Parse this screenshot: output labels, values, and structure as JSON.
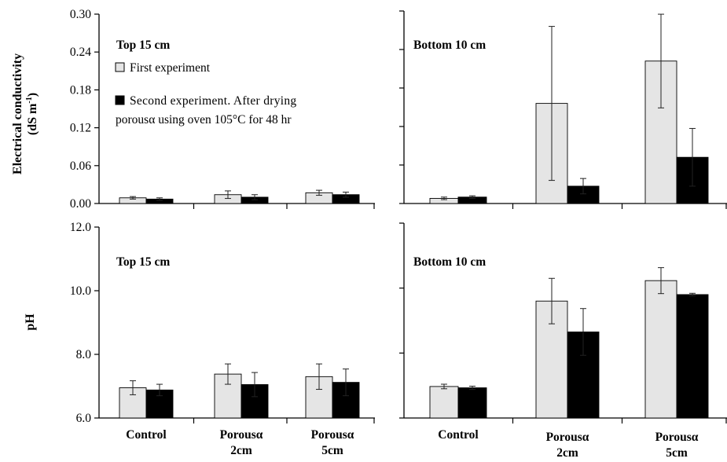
{
  "figure": {
    "left_ylabel_line1": "Electrical conductivity",
    "left_ylabel_line2_pre": "(dS m",
    "left_ylabel_line2_sup": "-1",
    "left_ylabel_line2_post": ")",
    "ph_ylabel": "pH",
    "categories": [
      {
        "line1": "Control",
        "line2": ""
      },
      {
        "line1": "Porousα",
        "line2": "2cm"
      },
      {
        "line1": "Porousα",
        "line2": "5cm"
      }
    ],
    "legend": [
      {
        "symbol": "□",
        "label_line1": "First experiment",
        "label_line2": ""
      },
      {
        "symbol": "■",
        "label_line1": "Second experiment. After drying",
        "label_line2": "porousα using oven 105°C for 48 hr"
      }
    ]
  },
  "colors": {
    "series1": "#e5e5e5",
    "series2": "#000000",
    "axis": "#000000"
  },
  "chart_data": [
    {
      "type": "bar",
      "id": "ec-top",
      "title": "Top 15 cm",
      "categories": [
        "Control",
        "Porousα 2cm",
        "Porousα 5cm"
      ],
      "ylim": [
        0,
        0.3
      ],
      "yticks": [
        "0.00",
        "0.06",
        "0.12",
        "0.18",
        "0.24",
        "0.30"
      ],
      "tick_values": [
        0,
        0.06,
        0.12,
        0.18,
        0.24,
        0.3
      ],
      "series": [
        {
          "name": "First experiment",
          "values": [
            0.009,
            0.014,
            0.017
          ],
          "errors": [
            0.002,
            0.006,
            0.004
          ]
        },
        {
          "name": "Second experiment. After drying porousα using oven 105°C for 48 hr",
          "values": [
            0.007,
            0.01,
            0.014
          ],
          "errors": [
            0.002,
            0.004,
            0.004
          ]
        }
      ]
    },
    {
      "type": "bar",
      "id": "ec-bottom",
      "title": "Bottom 10 cm",
      "categories": [
        "Control",
        "Porousα 2cm",
        "Porousα 5cm"
      ],
      "ylim": [
        0,
        0.3
      ],
      "yticks": [],
      "tick_values": [
        0,
        0.06,
        0.12,
        0.18,
        0.24,
        0.3
      ],
      "series": [
        {
          "name": "First experiment",
          "values": [
            0.008,
            0.156,
            0.222
          ],
          "errors": [
            0.002,
            0.12,
            0.073
          ]
        },
        {
          "name": "Second experiment. After drying porousα using oven 105°C for 48 hr",
          "values": [
            0.01,
            0.027,
            0.072
          ],
          "errors": [
            0.002,
            0.012,
            0.045
          ]
        }
      ]
    },
    {
      "type": "bar",
      "id": "ph-top",
      "title": "Top 15 cm",
      "categories": [
        "Control",
        "Porousα 2cm",
        "Porousα 5cm"
      ],
      "ylim": [
        6.0,
        12.0
      ],
      "yticks": [
        "6.0",
        "8.0",
        "10.0",
        "12.0"
      ],
      "tick_values": [
        6.0,
        8.0,
        10.0,
        12.0
      ],
      "series": [
        {
          "name": "First experiment",
          "values": [
            6.95,
            7.38,
            7.3
          ],
          "errors": [
            0.22,
            0.32,
            0.4
          ]
        },
        {
          "name": "Second experiment. After drying porousα using oven 105°C for 48 hr",
          "values": [
            6.88,
            7.05,
            7.12
          ],
          "errors": [
            0.18,
            0.38,
            0.42
          ]
        }
      ]
    },
    {
      "type": "bar",
      "id": "ph-bottom",
      "title": "Bottom 10 cm",
      "categories": [
        "Control",
        "Porousα 2cm",
        "Porousα 5cm"
      ],
      "ylim": [
        6.0,
        12.0
      ],
      "yticks": [],
      "tick_values": [
        6.0,
        8.0,
        10.0,
        12.0
      ],
      "series": [
        {
          "name": "First experiment",
          "values": [
            6.97,
            9.6,
            10.23
          ],
          "errors": [
            0.07,
            0.7,
            0.4
          ]
        },
        {
          "name": "Second experiment. After drying porousα using oven 105°C for 48 hr",
          "values": [
            6.93,
            8.65,
            9.8
          ],
          "errors": [
            0.05,
            0.72,
            0.04
          ]
        }
      ]
    }
  ]
}
